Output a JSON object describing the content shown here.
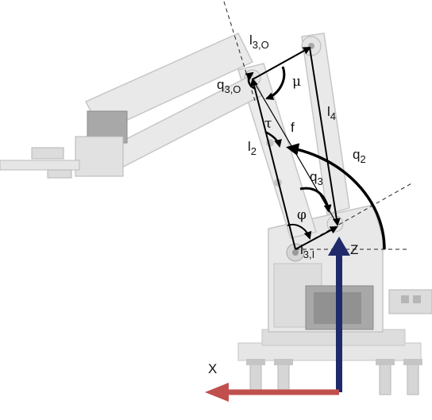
{
  "labels": {
    "l3o_main": "l",
    "l3o_sub": "3,O",
    "l4": "l",
    "l4_sub": "4",
    "q3o_main": "q",
    "q3o_sub": "3,O",
    "mu": "μ",
    "tau": "τ",
    "f": "f",
    "l2": "l",
    "l2_sub": "2",
    "q2": "q",
    "q2_sub": "2",
    "q3": "q",
    "q3_sub": "3",
    "phi": "φ",
    "l3i_main": "l",
    "l3i_sub": "3,I",
    "z": "Z",
    "x": "X"
  },
  "colors": {
    "z_axis": "#1f2a6b",
    "x_axis": "#c0504d",
    "robot_fill": "#e6e6e6",
    "robot_stroke": "#bdbdbd",
    "dark_part": "#8a8a8a",
    "vector": "#000000"
  }
}
